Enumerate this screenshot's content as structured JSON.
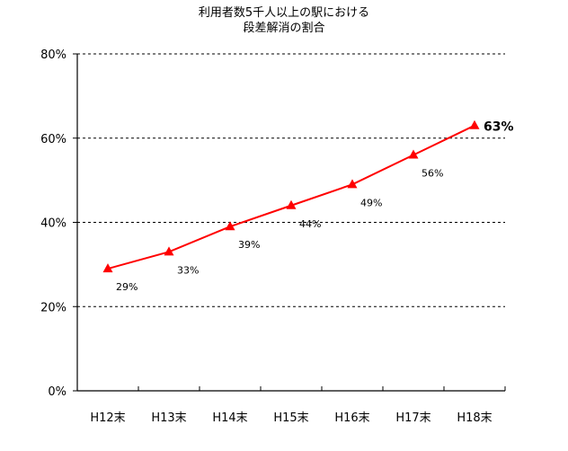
{
  "chart_data": {
    "type": "line",
    "title_lines": [
      "利用者数5千人以上の駅における",
      "段差解消の割合"
    ],
    "categories": [
      "H12末",
      "H13末",
      "H14末",
      "H15末",
      "H16末",
      "H17末",
      "H18末"
    ],
    "series": [
      {
        "values": [
          29,
          33,
          39,
          44,
          49,
          56,
          63
        ],
        "labels": [
          "29%",
          "33%",
          "39%",
          "44%",
          "49%",
          "56%",
          "63%"
        ],
        "color": "#ff0000",
        "marker": "triangle"
      }
    ],
    "ylim": [
      0,
      80
    ],
    "yticks": [
      0,
      20,
      40,
      60,
      80
    ],
    "ytick_labels": [
      "0%",
      "20%",
      "40%",
      "60%",
      "80%"
    ],
    "grid": "horizontal dashed",
    "emphasized_label": "63%"
  }
}
